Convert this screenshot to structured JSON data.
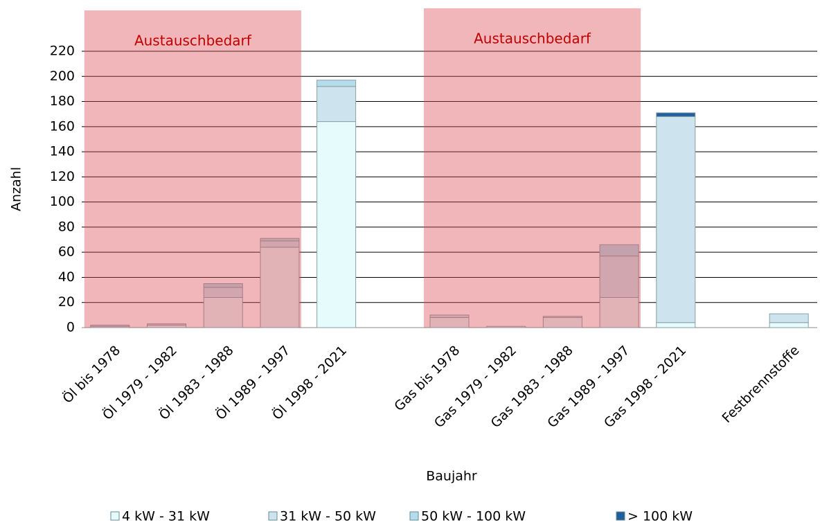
{
  "chart_data": {
    "type": "bar",
    "stacked": true,
    "annotations": [
      "Austauschbedarf",
      "Austauschbedarf"
    ],
    "xlabel": "Baujahr",
    "ylabel": "Anzahl",
    "categories": [
      "Öl bis 1978",
      "Öl 1979 - 1982",
      "Öl 1983 - 1988",
      "Öl 1989 - 1997",
      "Öl 1998 - 2021",
      null,
      "Gas bis 1978",
      "Gas 1979 - 1982",
      "Gas 1983 - 1988",
      "Gas 1989 - 1997",
      "Gas 1998 - 2021",
      null,
      "Festbrennstoffe"
    ],
    "series": [
      {
        "name": "4 kW - 31 kW",
        "color": "#e6fbfc",
        "values": [
          1,
          2,
          24,
          64,
          164,
          null,
          8,
          1,
          8,
          24,
          4,
          null,
          4
        ]
      },
      {
        "name": "31 kW - 50 kW",
        "color": "#cde4ee",
        "values": [
          1,
          1,
          8,
          5,
          28,
          null,
          2,
          0,
          1,
          33,
          164,
          null,
          7
        ]
      },
      {
        "name": "50 kW - 100 kW",
        "color": "#b4dceb",
        "values": [
          0,
          0,
          3,
          2,
          5,
          null,
          0,
          0,
          0,
          9,
          0,
          null,
          0
        ]
      },
      {
        "name": "> 100 kW",
        "color": "#1f5f9b",
        "values": [
          0,
          0,
          0,
          0,
          0,
          null,
          0,
          0,
          0,
          0,
          3,
          null,
          0
        ]
      }
    ],
    "ylim": [
      0,
      220
    ],
    "yticks": [
      0,
      20,
      40,
      60,
      80,
      100,
      120,
      140,
      160,
      180,
      200,
      220
    ],
    "grid": true
  }
}
